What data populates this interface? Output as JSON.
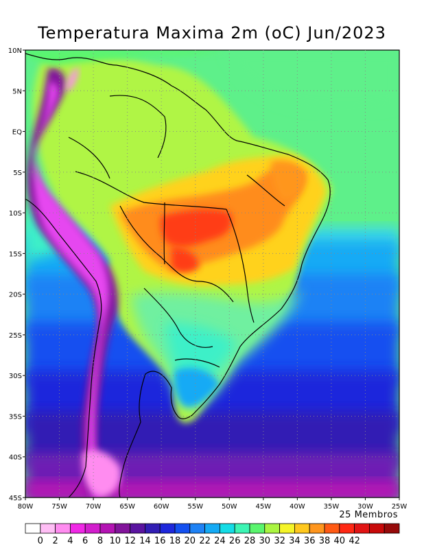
{
  "title": "Temperatura Maxima 2m (oC) Jun/2023",
  "members_label": "25 Membros",
  "map": {
    "lon_range": [
      -80,
      -25
    ],
    "lat_range": [
      -45,
      10
    ],
    "lat_ticks": [
      "10N",
      "5N",
      "EQ",
      "5S",
      "10S",
      "15S",
      "20S",
      "25S",
      "30S",
      "35S",
      "40S",
      "45S"
    ],
    "lon_ticks": [
      "80W",
      "75W",
      "70W",
      "65W",
      "60W",
      "55W",
      "50W",
      "45W",
      "40W",
      "35W",
      "30W",
      "25W"
    ],
    "gridlines": "dotted",
    "regions": [
      {
        "name": "atlantic-north",
        "color": "#5ef08a"
      },
      {
        "name": "amazon",
        "color": "#b0f545"
      },
      {
        "name": "central-brazil-warm",
        "color": "#ffd21e"
      },
      {
        "name": "central-brazil-hot",
        "color": "#ff8c1a"
      },
      {
        "name": "mato-grosso-core",
        "color": "#ff3c14"
      },
      {
        "name": "southeast",
        "color": "#70f0a0"
      },
      {
        "name": "pacific-equatorial",
        "color": "#3cf0c8"
      },
      {
        "name": "south-atlantic",
        "color": "#1a8cff"
      },
      {
        "name": "southern-cone",
        "color": "#1428e6"
      },
      {
        "name": "patagonia",
        "color": "#6e1ab4"
      },
      {
        "name": "andes-cold",
        "color": "#e646f0"
      }
    ]
  },
  "legend": {
    "labels": [
      "0",
      "2",
      "4",
      "6",
      "8",
      "10",
      "12",
      "14",
      "16",
      "18",
      "20",
      "22",
      "24",
      "26",
      "28",
      "30",
      "32",
      "34",
      "36",
      "38",
      "40",
      "42"
    ],
    "colors": [
      "#ffffff",
      "#ffbef5",
      "#ff8cf0",
      "#f028e6",
      "#d21ecd",
      "#b414b4",
      "#82149b",
      "#5a14a0",
      "#321eb4",
      "#1e28dc",
      "#1450f0",
      "#1e82f5",
      "#14aaf5",
      "#14dce6",
      "#3cf5b4",
      "#5af56e",
      "#aaf541",
      "#f5f528",
      "#ffc81e",
      "#ff961e",
      "#ff5a14",
      "#ff2814",
      "#e11414",
      "#c80a0a",
      "#960a0a"
    ]
  }
}
